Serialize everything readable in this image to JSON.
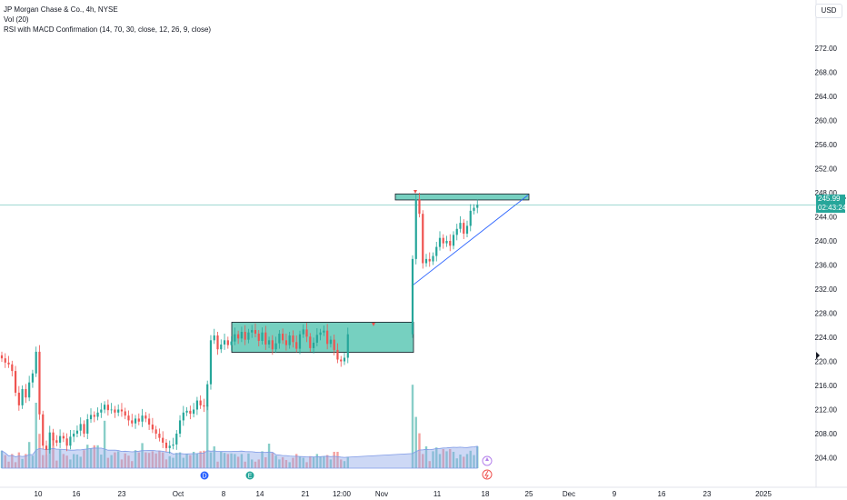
{
  "legend": {
    "title": "JP Morgan Chase & Co., 4h, NYSE",
    "volume": "Vol (20)",
    "indicator": "RSI with MACD Confirmation (14, 70, 30, close, 12, 26, 9, close)"
  },
  "currency": "USD",
  "price_tag": {
    "price": "245.99",
    "countdown": "02:43:24"
  },
  "event_markers": {
    "dividend": "D",
    "earnings": "E"
  },
  "colors": {
    "up": "#26a69a",
    "down": "#ef5350",
    "zone_fill": "#5ec8b5",
    "trendline": "#2962ff",
    "volume_ma": "#90a8e8"
  },
  "chart_data": {
    "type": "candlestick",
    "title": "JP Morgan Chase & Co., 4h, NYSE",
    "y_ticks": [
      204,
      208,
      212,
      216,
      220,
      224,
      228,
      232,
      236,
      240,
      244,
      248,
      252,
      256,
      260,
      264,
      268,
      272
    ],
    "y_tick_labels": [
      "204.00",
      "208.00",
      "212.00",
      "216.00",
      "220.00",
      "224.00",
      "228.00",
      "232.00",
      "236.00",
      "240.00",
      "244.00",
      "248.00",
      "252.00",
      "256.00",
      "260.00",
      "264.00",
      "268.00",
      "272.00"
    ],
    "x_tick_labels": [
      "10",
      "16",
      "23",
      "Oct",
      "8",
      "14",
      "21",
      "12:00",
      "Nov",
      "11",
      "18",
      "25",
      "Dec",
      "9",
      "16",
      "23",
      "2025"
    ],
    "last_price": 245.99,
    "zones": [
      {
        "label": "consolidation",
        "from": 221.5,
        "to": 226.5
      },
      {
        "label": "resistance",
        "from": 246.8,
        "to": 247.8
      }
    ],
    "trendline": {
      "from": 232.5,
      "to": 247.6
    },
    "closes": [
      220.5,
      219.8,
      219.5,
      218.4,
      214.8,
      212.7,
      215.4,
      214.0,
      216.5,
      218.0,
      221.6,
      211.2,
      206.0,
      205.3,
      208.2,
      206.9,
      206.5,
      207.6,
      207.2,
      206.0,
      207.5,
      208.0,
      208.5,
      209.6,
      208.0,
      210.4,
      211.1,
      210.8,
      211.5,
      212.0,
      212.8,
      211.9,
      212.0,
      211.5,
      212.0,
      211.7,
      211.0,
      210.2,
      209.7,
      210.5,
      210.0,
      211.0,
      210.5,
      209.5,
      208.7,
      208.0,
      207.3,
      206.5,
      205.6,
      206.0,
      206.2,
      208.0,
      210.2,
      211.5,
      211.8,
      211.3,
      212.0,
      213.5,
      212.7,
      212.5,
      216.2,
      223.5,
      224.3,
      222.0,
      222.8,
      223.5,
      222.7,
      223.3,
      224.5,
      223.8,
      224.9,
      223.6,
      224.8,
      225.2,
      224.6,
      223.4,
      224.8,
      222.8,
      223.5,
      222.0,
      223.0,
      224.6,
      223.5,
      222.7,
      224.3,
      223.2,
      222.1,
      224.5,
      225.3,
      224.1,
      222.2,
      223.1,
      224.4,
      224.8,
      225.1,
      222.9,
      223.6,
      221.9,
      220.3,
      220.0,
      220.6,
      224.5,
      237.0,
      246.9,
      244.5,
      236.3,
      237.0,
      236.6,
      237.5,
      239.0,
      240.5,
      239.6,
      240.0,
      239.2,
      241.0,
      242.0,
      243.0,
      241.2,
      242.5,
      245.0,
      245.5,
      245.99
    ],
    "volumes": [
      3.2,
      2.4,
      1.2,
      2.6,
      1.1,
      2.9,
      1.7,
      2.6,
      4.8,
      2.3,
      12,
      6.3,
      2.4,
      2.4,
      4.5,
      5.4,
      1.4,
      3.4,
      2.6,
      2.3,
      1.6,
      2.6,
      2.5,
      2.1,
      3.3,
      4.3,
      3.6,
      4.2,
      4.2,
      2.5,
      8.7,
      1.9,
      2.4,
      2.9,
      3.1,
      1.6,
      2.7,
      2.3,
      1.3,
      3.3,
      2.9,
      4.6,
      2.9,
      2.8,
      3.1,
      2.7,
      3.2,
      2.9,
      1.6,
      2.2,
      1.9,
      2.8,
      2.9,
      1.9,
      2.6,
      2.4,
      3.0,
      2.7,
      3.1,
      3.2,
      11.5,
      2.9,
      4.0,
      1.2,
      3.0,
      2.8,
      2.6,
      2.7,
      2.6,
      2.1,
      2.6,
      1.2,
      2.7,
      1.6,
      1.2,
      1.6,
      3.1,
      2.0,
      4.5,
      2.8,
      2.3,
      1.6,
      2.0,
      1.5,
      1.1,
      1.9,
      2.6,
      2.1,
      1.9,
      1.1,
      2.2,
      2.0,
      2.6,
      2.1,
      2.2,
      2.4,
      1.6,
      3.0,
      3.0,
      1.6,
      1.3,
      2.1,
      15.3,
      9.4,
      6.4,
      2.6,
      4.0,
      1.3,
      3.1,
      3.8,
      2.6,
      3.5,
      3.1,
      3.5,
      3.0,
      1.8,
      2.5,
      2.1,
      2.6,
      3.2,
      2.4,
      4.0
    ],
    "grid": false,
    "axis_position": "right"
  }
}
